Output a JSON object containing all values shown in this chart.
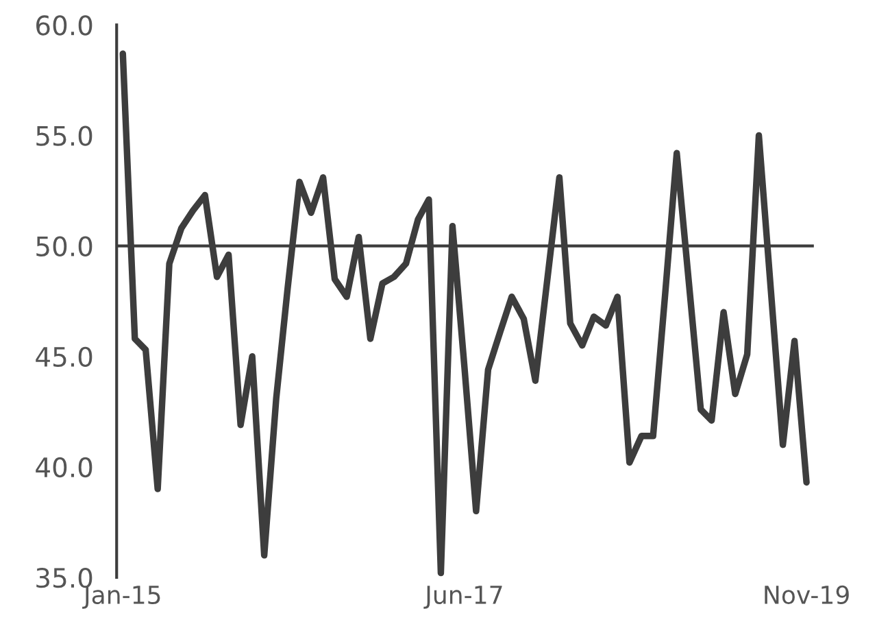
{
  "chart_data": {
    "type": "line",
    "x": [
      "2015-01",
      "2015-02",
      "2015-03",
      "2015-04",
      "2015-05",
      "2015-06",
      "2015-07",
      "2015-08",
      "2015-09",
      "2015-10",
      "2015-11",
      "2015-12",
      "2016-01",
      "2016-02",
      "2016-03",
      "2016-04",
      "2016-05",
      "2016-06",
      "2016-07",
      "2016-08",
      "2016-09",
      "2016-10",
      "2016-11",
      "2016-12",
      "2017-01",
      "2017-02",
      "2017-03",
      "2017-04",
      "2017-05",
      "2017-06",
      "2017-07",
      "2017-08",
      "2017-09",
      "2017-10",
      "2017-11",
      "2017-12",
      "2018-01",
      "2018-02",
      "2018-03",
      "2018-04",
      "2018-05",
      "2018-06",
      "2018-07",
      "2018-08",
      "2018-09",
      "2018-10",
      "2018-11",
      "2018-12",
      "2019-01",
      "2019-02",
      "2019-03",
      "2019-04",
      "2019-05",
      "2019-06",
      "2019-07",
      "2019-08",
      "2019-09",
      "2019-10",
      "2019-11"
    ],
    "series": [
      {
        "color": "#3d3d3d",
        "values": [
          58.7,
          45.8,
          45.3,
          39.0,
          49.2,
          50.8,
          51.6,
          52.3,
          48.6,
          49.6,
          41.9,
          45.0,
          36.0,
          43.1,
          48.0,
          52.9,
          51.5,
          53.1,
          48.5,
          47.7,
          50.4,
          45.8,
          48.3,
          48.6,
          49.2,
          51.2,
          52.1,
          35.2,
          50.9,
          44.5,
          38.0,
          44.4,
          46.1,
          47.7,
          46.7,
          43.9,
          48.5,
          53.1,
          46.5,
          45.5,
          46.8,
          46.4,
          47.7,
          40.2,
          41.4,
          41.4,
          47.8,
          54.2,
          48.4,
          42.6,
          42.1,
          47.0,
          43.3,
          45.1,
          55.0,
          48.0,
          41.0,
          45.7,
          39.3
        ]
      }
    ],
    "xlim": [
      "2014-12-16",
      "2019-11-20"
    ],
    "xticks": [
      {
        "value": "2015-01",
        "label": "Jan-15"
      },
      {
        "value": "2017-06",
        "label": "Jun-17"
      },
      {
        "value": "2019-11",
        "label": "Nov-19"
      }
    ],
    "ylim": [
      35,
      60
    ],
    "yticks": [
      {
        "value": 35,
        "label": "35.0"
      },
      {
        "value": 40,
        "label": "40.0"
      },
      {
        "value": 45,
        "label": "45.0"
      },
      {
        "value": 50,
        "label": "50.0"
      },
      {
        "value": 55,
        "label": "55.0"
      },
      {
        "value": 60,
        "label": "60.0"
      }
    ],
    "ref_lines": [
      {
        "axis": "y",
        "value": 50,
        "color": "#3d3d3d"
      }
    ],
    "grid": false,
    "legend": false,
    "marker": "none",
    "line_style": "solid"
  }
}
